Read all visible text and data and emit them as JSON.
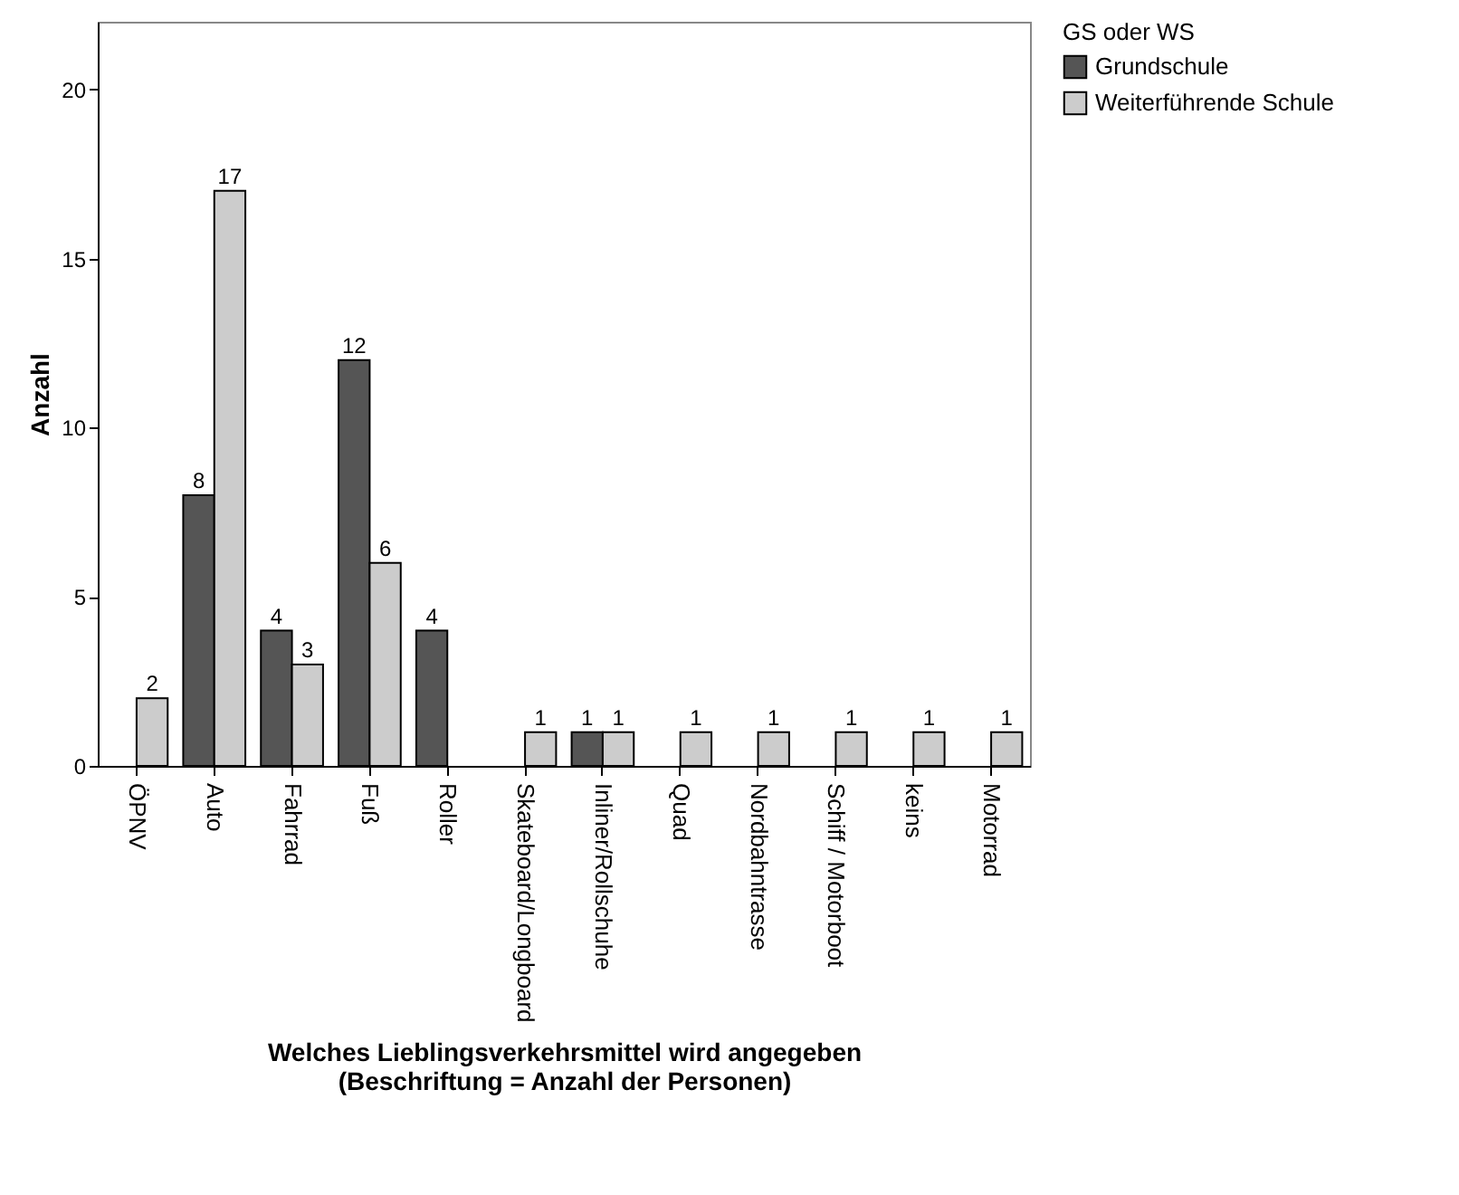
{
  "chart_data": {
    "type": "bar",
    "xlabel": "Welches Lieblingsverkehrsmittel wird angegeben\n(Beschriftung = Anzahl der Personen)",
    "ylabel": "Anzahl",
    "legend_title": "GS oder WS",
    "legend": "top right",
    "data_labels": true,
    "grid": false,
    "categories": [
      "ÖPNV",
      "Auto",
      "Fahrrad",
      "Fuß",
      "Roller",
      "Skateboard/Longboard",
      "Inliner/Rollschuhe",
      "Quad",
      "Nordbahntrasse",
      "Schiff / Motorboot",
      "keins",
      "Motorrad"
    ],
    "ylim": [
      0,
      22
    ],
    "yticks": [
      0,
      5,
      10,
      15,
      20
    ],
    "series": [
      {
        "name": "Grundschule",
        "color": "#555555",
        "values": [
          null,
          8,
          4,
          12,
          4,
          null,
          1,
          null,
          null,
          null,
          null,
          null
        ]
      },
      {
        "name": "Weiterführende Schule",
        "color": "#cccccc",
        "values": [
          2,
          17,
          3,
          6,
          null,
          1,
          1,
          1,
          1,
          1,
          1,
          1
        ]
      }
    ]
  }
}
